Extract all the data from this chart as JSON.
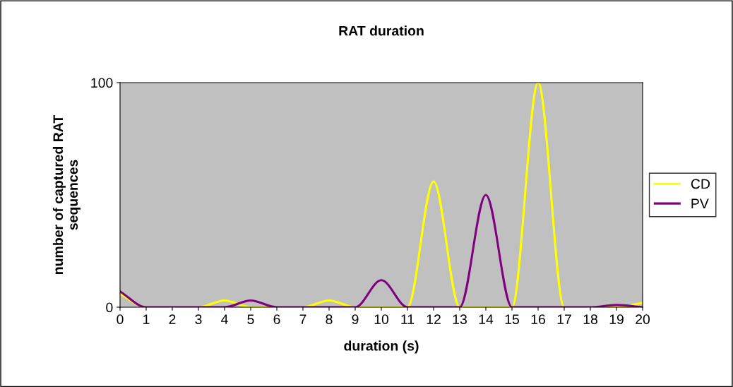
{
  "chart_data": {
    "type": "line",
    "title": "RAT duration",
    "xlabel": "duration (s)",
    "ylabel": "number of captured RAT\nsequences",
    "categories": [
      "0",
      "1",
      "2",
      "3",
      "4",
      "5",
      "6",
      "7",
      "8",
      "9",
      "10",
      "11",
      "12",
      "13",
      "14",
      "15",
      "16",
      "17",
      "18",
      "19",
      "20"
    ],
    "series": [
      {
        "name": "CD",
        "color": "#ffff00",
        "values": [
          6,
          0,
          0,
          0,
          3,
          0,
          0,
          0,
          3,
          0,
          0,
          0,
          56,
          0,
          0,
          0,
          100,
          0,
          0,
          0,
          2
        ]
      },
      {
        "name": "PV",
        "color": "#800080",
        "values": [
          7,
          0,
          0,
          0,
          0,
          3,
          0,
          0,
          0,
          0,
          12,
          0,
          0,
          0,
          50,
          0,
          0,
          0,
          0,
          1,
          0
        ]
      }
    ],
    "ylim": [
      0,
      100
    ],
    "yticks": [
      0,
      100
    ],
    "grid": false,
    "legend": "right",
    "marker": "none",
    "line_style": "solid"
  }
}
